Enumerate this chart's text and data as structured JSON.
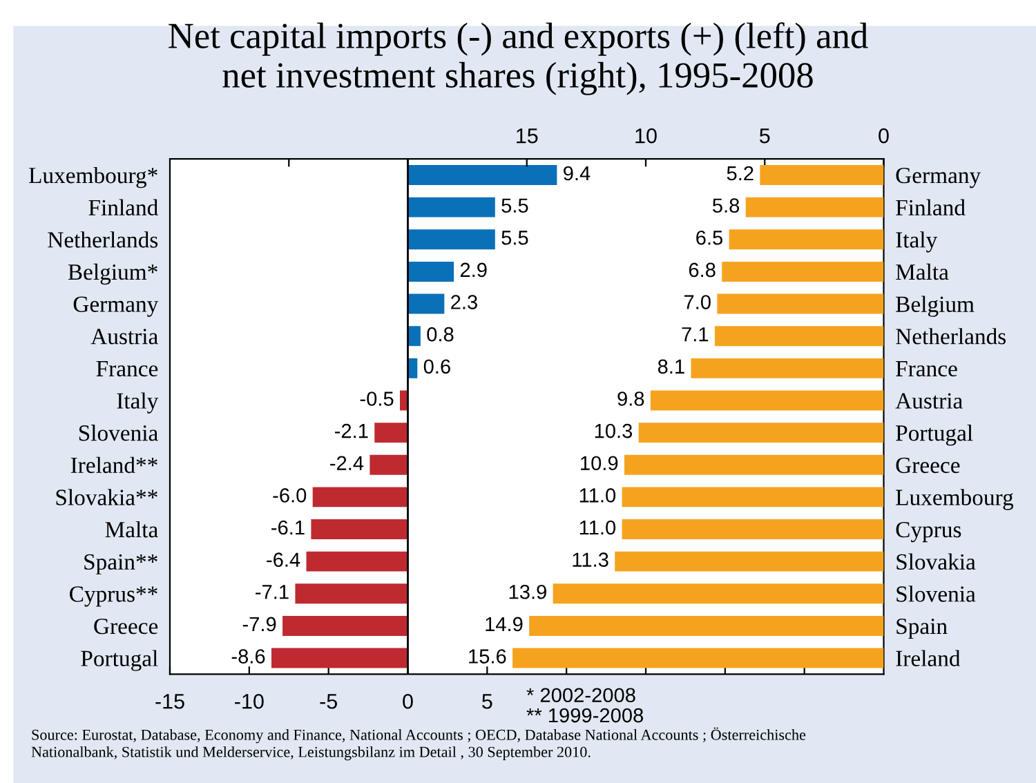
{
  "chart_data": [
    {
      "type": "bar",
      "orientation": "horizontal",
      "title": "Net capital imports (-) and exports (+) (left) and\nnet investment shares (right), 1995-2008",
      "categories": [
        "Luxembourg*",
        "Finland",
        "Netherlands",
        "Belgium*",
        "Germany",
        "Austria",
        "France",
        "Italy",
        "Slovenia",
        "Ireland**",
        "Slovakia**",
        "Malta",
        "Spain**",
        "Cyprus**",
        "Greece",
        "Portugal"
      ],
      "values": [
        9.4,
        5.5,
        5.5,
        2.9,
        2.3,
        0.8,
        0.6,
        -0.5,
        -2.1,
        -2.4,
        -6.0,
        -6.1,
        -6.4,
        -7.1,
        -7.9,
        -8.6
      ],
      "colors": [
        "#0a70b8",
        "#0a70b8",
        "#0a70b8",
        "#0a70b8",
        "#0a70b8",
        "#0a70b8",
        "#0a70b8",
        "#be2a30",
        "#be2a30",
        "#be2a30",
        "#be2a30",
        "#be2a30",
        "#be2a30",
        "#be2a30",
        "#be2a30",
        "#be2a30"
      ],
      "value_labels": [
        "9.4",
        "5.5",
        "5.5",
        "2.9",
        "2.3",
        "0.8",
        "0.6",
        "-0.5",
        "-2.1",
        "-2.4",
        "-6.0",
        "-6.1",
        "-6.4",
        "-7.1",
        "-7.9",
        "-8.6"
      ],
      "xlim": [
        -15,
        30
      ],
      "xticks": [
        -15,
        -10,
        -5,
        0,
        5,
        {
          "value": 10,
          "label": null
        },
        {
          "value": 15,
          "label": null
        },
        {
          "value": 20,
          "label": null
        },
        {
          "value": 25,
          "label": null
        }
      ],
      "ref_lines": [
        {
          "axis": "x",
          "value": 0,
          "color": "#000000"
        }
      ],
      "grid": false,
      "legend": false,
      "annotations": [
        "* 2002-2008\n** 1999-2008",
        "Source: Eurostat, Database, Economy and Finance, National Accounts ; OECD, Database National Accounts ; Österreichische\nNationalbank, Statistik und Melderservice, Leistungsbilanz im Detail , 30 September 2010."
      ]
    },
    {
      "type": "bar",
      "orientation": "horizontal",
      "categories": [
        "Germany",
        "Finland",
        "Italy",
        "Malta",
        "Belgium",
        "Netherlands",
        "France",
        "Austria",
        "Portugal",
        "Greece",
        "Luxembourg",
        "Cyprus",
        "Slovakia",
        "Slovenia",
        "Spain",
        "Ireland"
      ],
      "values": [
        5.2,
        5.8,
        6.5,
        6.8,
        7.0,
        7.1,
        8.1,
        9.8,
        10.3,
        10.9,
        11.0,
        11.0,
        11.3,
        13.9,
        14.9,
        15.6
      ],
      "color": "#f5a31f",
      "value_labels": [
        "5.2",
        "5.8",
        "6.5",
        "6.8",
        "7.0",
        "7.1",
        "8.1",
        "9.8",
        "10.3",
        "10.9",
        "11.0",
        "11.0",
        "11.3",
        "13.9",
        "14.9",
        "15.6"
      ],
      "xlim": [
        30,
        0
      ],
      "xticks": [
        {
          "value": 25,
          "label": null
        },
        {
          "value": 20,
          "label": null
        },
        15,
        10,
        5,
        0
      ],
      "grid": false,
      "legend": false
    }
  ]
}
